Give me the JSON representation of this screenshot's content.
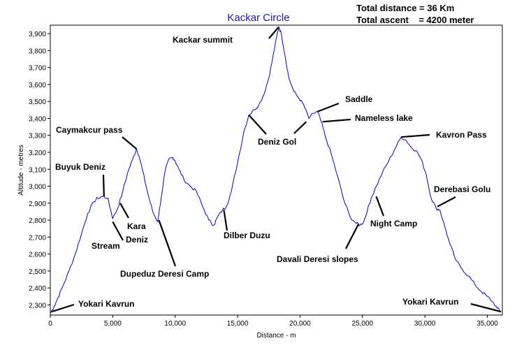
{
  "stats": {
    "total_distance": "Total distance = 36 Km",
    "total_ascent": "Total ascent    = 4200 meter"
  },
  "chart_data": {
    "type": "line",
    "title": "Kackar Circle",
    "xlabel": "Distance - m",
    "ylabel": "Altitude - metres",
    "xlim": [
      0,
      36200
    ],
    "ylim": [
      2240,
      3950
    ],
    "grid": false,
    "x_ticks": [
      0,
      5000,
      10000,
      15000,
      20000,
      25000,
      30000,
      35000
    ],
    "x_tick_labels": [
      "0",
      "5,000",
      "10,000",
      "15,000",
      "20,000",
      "25,000",
      "30,000",
      "35,000"
    ],
    "y_ticks": [
      2300,
      2400,
      2500,
      2600,
      2700,
      2800,
      2900,
      3000,
      3100,
      3200,
      3300,
      3400,
      3500,
      3600,
      3700,
      3800,
      3900
    ],
    "y_tick_labels": [
      "2,300",
      "2,400",
      "2,500",
      "2,600",
      "2,700",
      "2,800",
      "2,900",
      "3,000",
      "3,100",
      "3,200",
      "3,300",
      "3,400",
      "3,500",
      "3,600",
      "3,700",
      "3,800",
      "3,900"
    ],
    "line_color": "#0000cc",
    "series": [
      {
        "x": [
          0,
          300,
          600,
          1000,
          1500,
          2000,
          2500,
          3000,
          3500,
          3800,
          4200,
          4600,
          4800,
          5000,
          5400,
          5800,
          6200,
          6600,
          6900,
          7100,
          7400,
          7800,
          8200,
          8600,
          8900,
          9200,
          9500,
          9800,
          10000,
          10300,
          10700,
          11200,
          11700,
          12200,
          12700,
          13100,
          13400,
          13800,
          14100,
          14500,
          15000,
          15500,
          15900,
          16300,
          16700,
          17100,
          17500,
          17800,
          18100,
          18300,
          18500,
          18800,
          19100,
          19500,
          19900,
          20300,
          20700,
          21100,
          21400,
          21700,
          22000,
          22500,
          23000,
          23500,
          24000,
          24500,
          24800,
          25100,
          25400,
          25700,
          26100,
          26600,
          27100,
          27600,
          28100,
          28500,
          28900,
          29300,
          29700,
          30100,
          30500,
          30900,
          31200,
          31600,
          32000,
          32500,
          33000,
          33500,
          34000,
          34500,
          35000,
          35400,
          35800,
          36100
        ],
        "y": [
          2250,
          2290,
          2340,
          2410,
          2500,
          2600,
          2720,
          2840,
          2910,
          2930,
          2940,
          2930,
          2870,
          2810,
          2870,
          2970,
          3080,
          3160,
          3220,
          3180,
          3090,
          2960,
          2850,
          2790,
          2940,
          3090,
          3160,
          3170,
          3150,
          3100,
          3040,
          3000,
          2970,
          2880,
          2800,
          2770,
          2820,
          2860,
          2880,
          2970,
          3140,
          3320,
          3420,
          3450,
          3480,
          3540,
          3640,
          3750,
          3870,
          3940,
          3900,
          3770,
          3640,
          3560,
          3520,
          3480,
          3400,
          3430,
          3440,
          3380,
          3300,
          3190,
          3060,
          2920,
          2820,
          2780,
          2770,
          2790,
          2860,
          2930,
          3000,
          3080,
          3150,
          3220,
          3290,
          3270,
          3230,
          3210,
          3160,
          3070,
          2930,
          2870,
          2860,
          2760,
          2660,
          2560,
          2510,
          2470,
          2420,
          2380,
          2350,
          2320,
          2280,
          2260
        ]
      }
    ],
    "annotations": [
      {
        "text": "Kackar summit",
        "x": 18300,
        "y": 3940
      },
      {
        "text": "Saddle",
        "x": 21400,
        "y": 3440
      },
      {
        "text": "Nameless lake",
        "x": 21800,
        "y": 3380
      },
      {
        "text": "Deniz Gol",
        "x": 15900,
        "y": 3420
      },
      {
        "text": "Deniz Gol",
        "x": 20500,
        "y": 3380
      },
      {
        "text": "Caymakcur pass",
        "x": 6900,
        "y": 3220
      },
      {
        "text": "Kavron Pass",
        "x": 28100,
        "y": 3290
      },
      {
        "text": "Buyuk Deniz",
        "x": 4300,
        "y": 2940
      },
      {
        "text": "Derebasi Golu",
        "x": 31000,
        "y": 2880
      },
      {
        "text": "Kara Deniz",
        "x": 5600,
        "y": 2900
      },
      {
        "text": "Stream",
        "x": 5000,
        "y": 2790
      },
      {
        "text": "Night Camp",
        "x": 26100,
        "y": 2940
      },
      {
        "text": "Dilber Duzu",
        "x": 13900,
        "y": 2860
      },
      {
        "text": "Dupeduz Deresi Camp",
        "x": 8700,
        "y": 2800
      },
      {
        "text": "Davali Deresi slopes",
        "x": 24700,
        "y": 2780
      },
      {
        "text": "Yokari Kavrun",
        "x": 100,
        "y": 2260
      },
      {
        "text": "Yokari Kavrun",
        "x": 36100,
        "y": 2260
      }
    ]
  }
}
